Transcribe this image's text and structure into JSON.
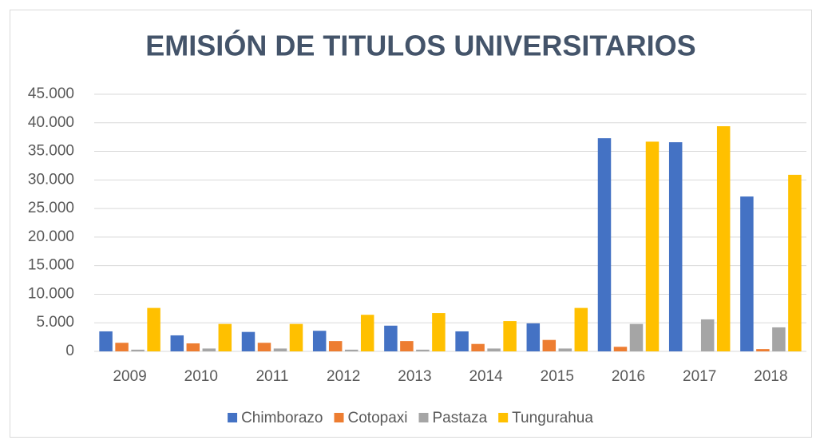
{
  "chart_data": {
    "type": "bar",
    "title": "EMISIÓN DE TITULOS UNIVERSITARIOS",
    "categories": [
      "2009",
      "2010",
      "2011",
      "2012",
      "2013",
      "2014",
      "2015",
      "2016",
      "2017",
      "2018"
    ],
    "series": [
      {
        "name": "Chimborazo",
        "color": "#4472c4",
        "values": [
          3500,
          2800,
          3400,
          3600,
          4500,
          3500,
          4900,
          37300,
          36600,
          27100
        ]
      },
      {
        "name": "Cotopaxi",
        "color": "#ed7d31",
        "values": [
          1500,
          1400,
          1500,
          1800,
          1800,
          1300,
          2000,
          800,
          0,
          400
        ]
      },
      {
        "name": "Pastaza",
        "color": "#a5a5a5",
        "values": [
          300,
          500,
          500,
          300,
          300,
          500,
          500,
          4800,
          5600,
          4200
        ]
      },
      {
        "name": "Tungurahua",
        "color": "#ffc000",
        "values": [
          7600,
          4800,
          4800,
          6400,
          6700,
          5300,
          7600,
          36700,
          39400,
          30900
        ]
      }
    ],
    "ylim": [
      0,
      45000
    ],
    "yticks": [
      0,
      {
        "value": 5000,
        "label": "5.000"
      },
      {
        "value": 10000,
        "label": "10.000"
      },
      {
        "value": 15000,
        "label": "15.000"
      },
      {
        "value": 20000,
        "label": "20.000"
      },
      {
        "value": 25000,
        "label": "25.000"
      },
      {
        "value": 30000,
        "label": "30.000"
      },
      {
        "value": 35000,
        "label": "35.000"
      },
      {
        "value": 40000,
        "label": "40.000"
      },
      {
        "value": 45000,
        "label": "45.000"
      }
    ],
    "grid": true,
    "legend": "bottom"
  }
}
